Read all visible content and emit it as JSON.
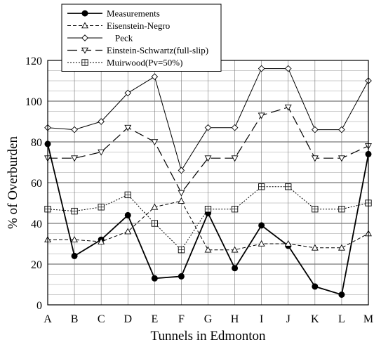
{
  "chart_data": {
    "type": "line",
    "title": "",
    "xlabel": "Tunnels in Edmonton",
    "ylabel": "% of Overburden",
    "categories": [
      "A",
      "B",
      "C",
      "D",
      "E",
      "F",
      "G",
      "H",
      "I",
      "J",
      "K",
      "L",
      "M"
    ],
    "ylim": [
      0,
      120
    ],
    "yticks": [
      0,
      20,
      40,
      60,
      80,
      100,
      120
    ],
    "grid": "horizontal minor and major lines, vertical lines at each category",
    "legend_position": "top-left",
    "series": [
      {
        "name": "Measurements",
        "marker": "filled-circle",
        "dash": "solid",
        "color": "#000000",
        "values": [
          79,
          24,
          32,
          44,
          13,
          14,
          45,
          18,
          39,
          29,
          9,
          5,
          74
        ]
      },
      {
        "name": "Eisenstein-Negro",
        "marker": "triangle-up",
        "dash": "short",
        "color": "#000000",
        "values": [
          32,
          32,
          31,
          36,
          48,
          51,
          27,
          27,
          30,
          30,
          28,
          28,
          35
        ]
      },
      {
        "name": "Peck",
        "marker": "diamond",
        "dash": "solid-thin",
        "color": "#000000",
        "values": [
          87,
          86,
          90,
          104,
          112,
          66,
          87,
          87,
          116,
          116,
          86,
          86,
          110
        ]
      },
      {
        "name": "Einstein-Schwartz(full-slip)",
        "marker": "triangle-down",
        "dash": "long",
        "color": "#000000",
        "values": [
          72,
          72,
          75,
          87,
          80,
          55,
          72,
          72,
          93,
          97,
          72,
          72,
          78
        ]
      },
      {
        "name": "Muirwood(Pv=50%)",
        "marker": "square-plus",
        "dash": "dotted",
        "color": "#000000",
        "values": [
          47,
          46,
          48,
          54,
          40,
          27,
          47,
          47,
          58,
          58,
          47,
          47,
          50
        ]
      }
    ]
  }
}
